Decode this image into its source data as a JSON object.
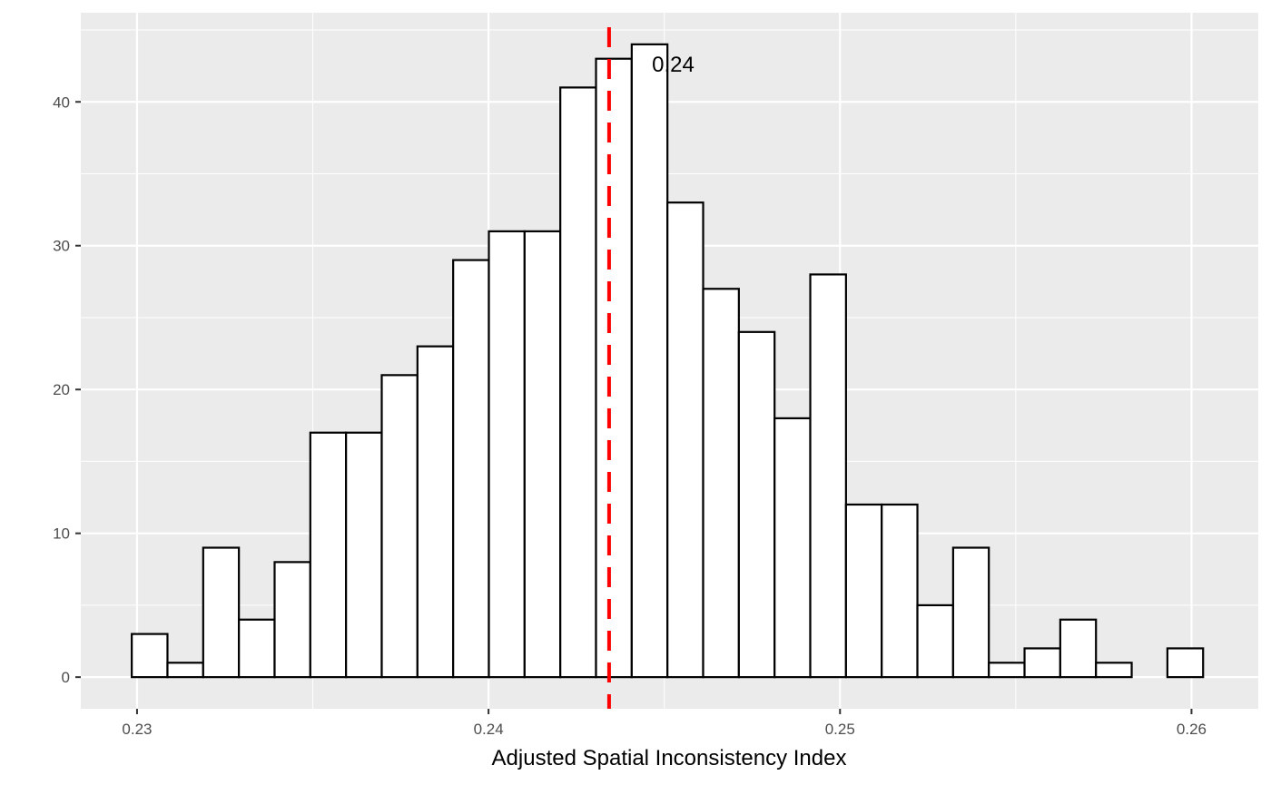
{
  "chart_data": {
    "type": "bar",
    "title": "",
    "xlabel": "Adjusted Spatial Inconsistency Index",
    "ylabel": "",
    "xlim": [
      0.2284,
      0.2619
    ],
    "ylim": [
      -2.2,
      46.2
    ],
    "x_ticks": [
      0.23,
      0.24,
      0.25,
      0.26
    ],
    "x_tick_labels": [
      "0.23",
      "0.24",
      "0.25",
      "0.26"
    ],
    "y_ticks": [
      0,
      10,
      20,
      30,
      40
    ],
    "y_tick_labels": [
      "0",
      "10",
      "20",
      "30",
      "40"
    ],
    "grid": true,
    "bin_start": 0.22985,
    "bin_width": 0.001016,
    "counts": [
      3,
      1,
      9,
      4,
      8,
      17,
      17,
      21,
      23,
      29,
      31,
      31,
      41,
      43,
      44,
      33,
      27,
      24,
      18,
      28,
      12,
      12,
      5,
      9,
      1,
      2,
      4,
      1,
      0,
      2
    ],
    "reference_line": {
      "x": 0.24343,
      "color": "#ff0000",
      "style": "dashed"
    },
    "annotation": {
      "text": "0.24",
      "x": 0.24465,
      "y": 42.6
    },
    "colors": {
      "panel": "#ebebeb",
      "grid": "#ffffff",
      "bar_fill": "#ffffff",
      "bar_stroke": "#000000"
    }
  }
}
